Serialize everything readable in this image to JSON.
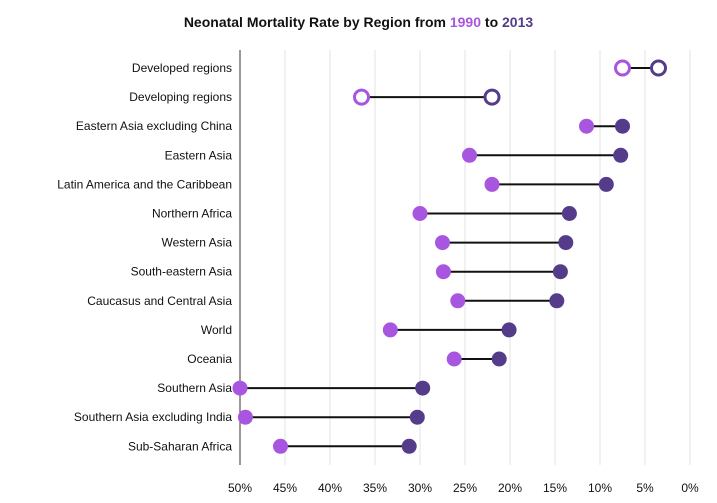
{
  "chart_data": {
    "type": "dumbbell",
    "title_prefix": "Neonatal Mortality Rate by Region from ",
    "title_year_start": "1990",
    "title_connector": " to ",
    "title_year_end": "2013",
    "x_axis": {
      "reversed": true,
      "domain": [
        50,
        0
      ],
      "ticks": [
        "50%",
        "45%",
        "40%",
        "35%",
        "30%",
        "25%",
        "20%",
        "15%",
        "10%",
        "5%",
        "0%"
      ],
      "grid": true
    },
    "colors": {
      "start": "#a855e0",
      "end": "#553c8b"
    },
    "regions": [
      {
        "name": "Developed regions",
        "v1990": 7.5,
        "v2013": 3.5,
        "hollow": true
      },
      {
        "name": "Developing regions",
        "v1990": 36.5,
        "v2013": 22.0,
        "hollow": true
      },
      {
        "name": "Eastern Asia excluding China",
        "v1990": 11.5,
        "v2013": 7.5,
        "hollow": false
      },
      {
        "name": "Eastern Asia",
        "v1990": 24.5,
        "v2013": 7.7,
        "hollow": false
      },
      {
        "name": "Latin America and the Caribbean",
        "v1990": 22.0,
        "v2013": 9.3,
        "hollow": false
      },
      {
        "name": "Northern Africa",
        "v1990": 30.0,
        "v2013": 13.4,
        "hollow": false
      },
      {
        "name": "Western Asia",
        "v1990": 27.5,
        "v2013": 13.8,
        "hollow": false
      },
      {
        "name": "South-eastern Asia",
        "v1990": 27.4,
        "v2013": 14.4,
        "hollow": false
      },
      {
        "name": "Caucasus and Central Asia",
        "v1990": 25.8,
        "v2013": 14.8,
        "hollow": false
      },
      {
        "name": "World",
        "v1990": 33.3,
        "v2013": 20.1,
        "hollow": false
      },
      {
        "name": "Oceania",
        "v1990": 26.2,
        "v2013": 21.2,
        "hollow": false
      },
      {
        "name": "Southern Asia",
        "v1990": 50.0,
        "v2013": 29.7,
        "hollow": false
      },
      {
        "name": "Southern Asia excluding India",
        "v1990": 49.4,
        "v2013": 30.3,
        "hollow": false
      },
      {
        "name": "Sub-Saharan Africa",
        "v1990": 45.5,
        "v2013": 31.2,
        "hollow": false
      }
    ]
  }
}
